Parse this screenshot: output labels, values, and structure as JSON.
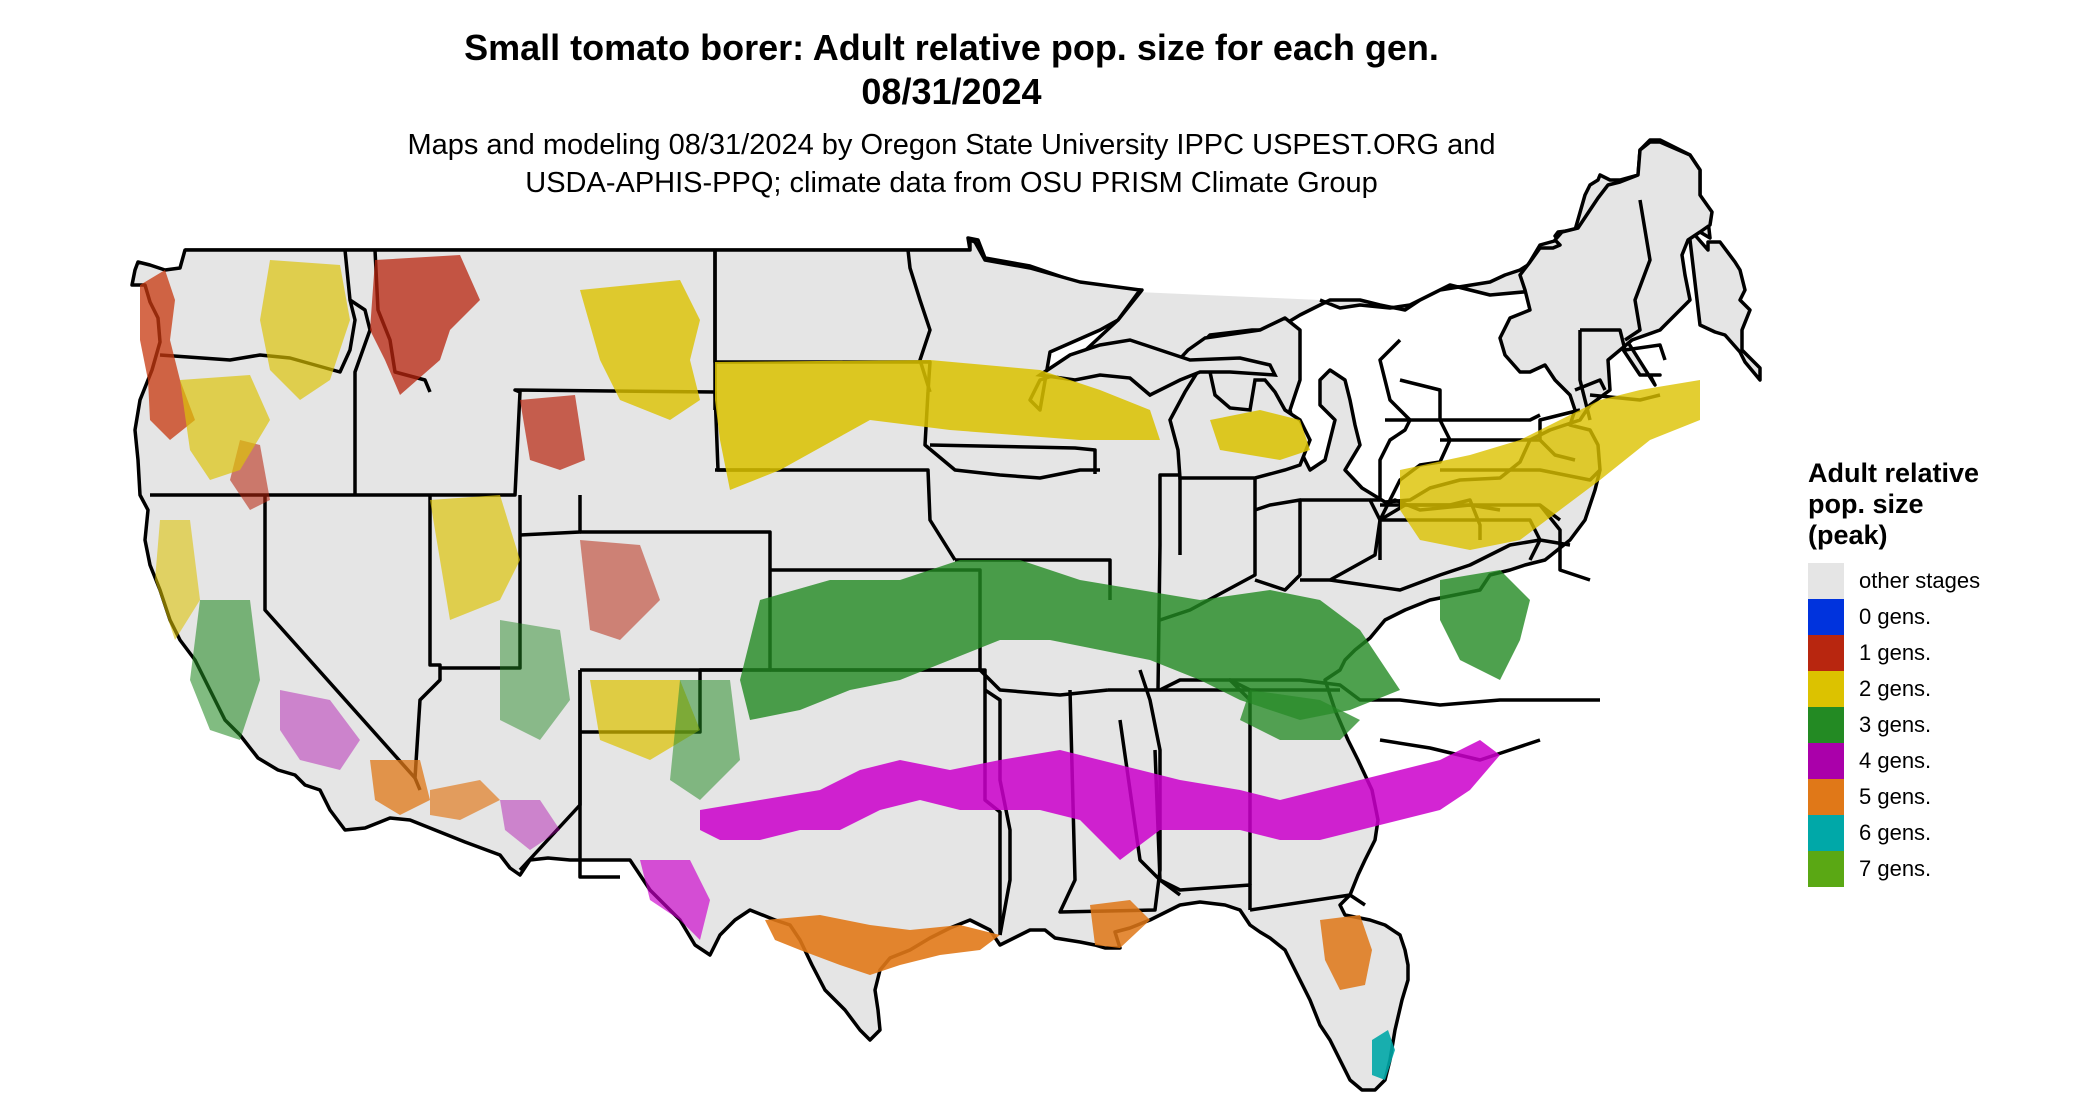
{
  "header": {
    "title_line1": "Small tomato borer: Adult relative pop. size for each gen.",
    "title_line2": "08/31/2024",
    "subtitle_line1": "Maps and modeling 08/31/2024 by Oregon State University IPPC USPEST.ORG and",
    "subtitle_line2": "USDA-APHIS-PPQ; climate data from OSU PRISM Climate Group"
  },
  "legend": {
    "title_line1": "Adult relative",
    "title_line2": "pop. size",
    "title_line3": "(peak)",
    "items": [
      {
        "label": "other stages",
        "color": "#e5e5e5"
      },
      {
        "label": "0 gens.",
        "color": "#0033dd"
      },
      {
        "label": "1 gens.",
        "color": "#b8260f"
      },
      {
        "label": "2 gens.",
        "color": "#dcc200"
      },
      {
        "label": "3 gens.",
        "color": "#238a23"
      },
      {
        "label": "4 gens.",
        "color": "#aa00aa"
      },
      {
        "label": "5 gens.",
        "color": "#e07818"
      },
      {
        "label": "6 gens.",
        "color": "#00a8a8"
      },
      {
        "label": "7 gens.",
        "color": "#5aa814"
      }
    ]
  },
  "map": {
    "land_color": "#e5e5e5",
    "border_color": "#000000"
  }
}
